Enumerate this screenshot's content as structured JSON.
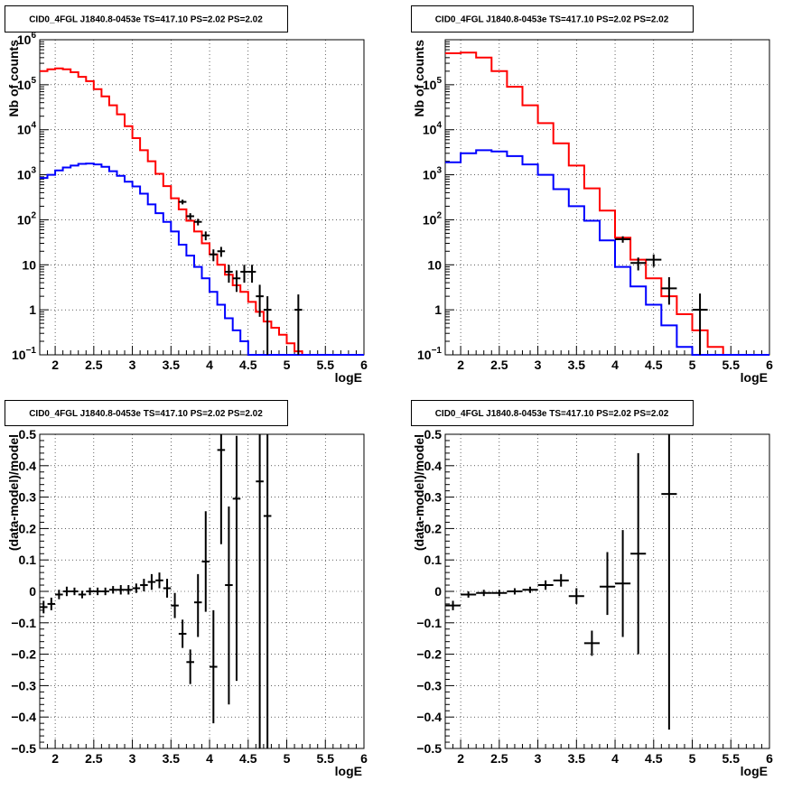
{
  "chart_data": [
    {
      "type": "line",
      "title": "CID0_4FGL J1840.8-0453e TS=417.10 PS=2.02 PS=2.02",
      "xlabel": "logE",
      "ylabel": "Nb of counts",
      "xlim": [
        1.8,
        6.0
      ],
      "ylim": [
        0.1,
        1000000
      ],
      "log_y": true,
      "grid": true,
      "x_ticks": [
        "2",
        "2.5",
        "3",
        "3.5",
        "4",
        "4.5",
        "5",
        "5.5",
        "6"
      ],
      "y_ticks": [
        {
          "v": 0.1,
          "b": "10",
          "e": "−1"
        },
        {
          "v": 1,
          "b": "1",
          "e": ""
        },
        {
          "v": 10,
          "b": "10",
          "e": ""
        },
        {
          "v": 100,
          "b": "10",
          "e": "2"
        },
        {
          "v": 1000,
          "b": "10",
          "e": "3"
        },
        {
          "v": 10000,
          "b": "10",
          "e": "4"
        },
        {
          "v": 100000,
          "b": "10",
          "e": "5"
        },
        {
          "v": 1000000,
          "b": "10",
          "e": "6"
        }
      ],
      "series": [
        {
          "name": "",
          "color": "#ff0000",
          "kind": "step",
          "bin_width": 0.1,
          "x": [
            1.8,
            1.9,
            2.0,
            2.1,
            2.2,
            2.3,
            2.4,
            2.5,
            2.6,
            2.7,
            2.8,
            2.9,
            3.0,
            3.1,
            3.2,
            3.3,
            3.4,
            3.5,
            3.6,
            3.7,
            3.8,
            3.9,
            4.0,
            4.1,
            4.2,
            4.3,
            4.4,
            4.5,
            4.6,
            4.7,
            4.8,
            4.9,
            5.0,
            5.1,
            5.2,
            5.3,
            5.4,
            5.5,
            5.6,
            5.7,
            5.8,
            5.9
          ],
          "values": [
            200000,
            220000,
            230000,
            220000,
            190000,
            150000,
            120000,
            80000,
            55000,
            35000,
            22000,
            12000,
            6500,
            3500,
            2000,
            1050,
            560,
            300,
            170,
            95,
            55,
            30,
            17,
            10,
            6,
            3.5,
            2.5,
            1.5,
            0.9,
            0.55,
            0.4,
            0.28,
            0.18,
            0.12,
            0.1,
            0.1,
            0.1,
            0.1,
            0.1,
            0.1,
            0.1,
            0.1
          ]
        },
        {
          "name": "",
          "color": "#0000ff",
          "kind": "step",
          "bin_width": 0.1,
          "x": [
            1.8,
            1.9,
            2.0,
            2.1,
            2.2,
            2.3,
            2.4,
            2.5,
            2.6,
            2.7,
            2.8,
            2.9,
            3.0,
            3.1,
            3.2,
            3.3,
            3.4,
            3.5,
            3.6,
            3.7,
            3.8,
            3.9,
            4.0,
            4.1,
            4.2,
            4.3,
            4.4,
            4.5,
            4.6,
            4.7,
            4.8,
            4.9,
            5.0,
            5.1,
            5.2,
            5.3,
            5.4,
            5.5,
            5.6,
            5.7,
            5.8,
            5.9
          ],
          "values": [
            850,
            1000,
            1250,
            1450,
            1600,
            1750,
            1780,
            1700,
            1500,
            1200,
            950,
            700,
            550,
            380,
            220,
            140,
            90,
            55,
            28,
            16,
            9,
            5,
            2.5,
            1.3,
            0.65,
            0.35,
            0.2,
            0.1,
            0.1,
            0.1,
            0.1,
            0.1,
            0.1,
            0.1,
            0.1,
            0.1,
            0.1,
            0.1,
            0.1,
            0.1,
            0.1,
            0.1
          ]
        },
        {
          "name": "",
          "color": "#000000",
          "kind": "errorbar",
          "xerr": 0.05,
          "x": [
            3.65,
            3.75,
            3.85,
            3.95,
            4.05,
            4.15,
            4.25,
            4.35,
            4.45,
            4.55,
            4.65,
            4.75,
            5.15
          ],
          "values": [
            250,
            120,
            90,
            45,
            17,
            20,
            7,
            5,
            7,
            7,
            2,
            1,
            1
          ],
          "yerr_lo": [
            30,
            20,
            15,
            10,
            5,
            5,
            3,
            2.5,
            3,
            3,
            1.3,
            0.9,
            0.9
          ],
          "yerr_hi": [
            30,
            20,
            15,
            10,
            5,
            5,
            3,
            2.5,
            3,
            3,
            1.6,
            1,
            1.2
          ]
        }
      ]
    },
    {
      "type": "line",
      "title": "CID0_4FGL J1840.8-0453e TS=417.10 PS=2.02 PS=2.02",
      "xlabel": "logE",
      "ylabel": "Nb of counts",
      "xlim": [
        1.8,
        6.0
      ],
      "ylim": [
        0.1,
        1000000
      ],
      "log_y": true,
      "grid": true,
      "x_ticks": [
        "2",
        "2.5",
        "3",
        "3.5",
        "4",
        "4.5",
        "5",
        "5.5",
        "6"
      ],
      "y_ticks": [
        {
          "v": 0.1,
          "b": "10",
          "e": "−1"
        },
        {
          "v": 1,
          "b": "1",
          "e": ""
        },
        {
          "v": 10,
          "b": "10",
          "e": ""
        },
        {
          "v": 100,
          "b": "10",
          "e": "2"
        },
        {
          "v": 1000,
          "b": "10",
          "e": "3"
        },
        {
          "v": 10000,
          "b": "10",
          "e": "4"
        },
        {
          "v": 100000,
          "b": "10",
          "e": "5"
        }
      ],
      "series": [
        {
          "name": "",
          "color": "#ff0000",
          "kind": "step",
          "bin_width": 0.2,
          "x": [
            1.8,
            2.0,
            2.2,
            2.4,
            2.6,
            2.8,
            3.0,
            3.2,
            3.4,
            3.6,
            3.8,
            4.0,
            4.2,
            4.4,
            4.6,
            4.8,
            5.0,
            5.2,
            5.4,
            5.6,
            5.8
          ],
          "values": [
            500000,
            520000,
            400000,
            200000,
            90000,
            35000,
            14000,
            5000,
            1600,
            500,
            160,
            40,
            13,
            5,
            2,
            0.8,
            0.35,
            0.15,
            0.1,
            0.1,
            0.1
          ]
        },
        {
          "name": "",
          "color": "#0000ff",
          "kind": "step",
          "bin_width": 0.2,
          "x": [
            1.8,
            2.0,
            2.2,
            2.4,
            2.6,
            2.8,
            3.0,
            3.2,
            3.4,
            3.6,
            3.8,
            4.0,
            4.2,
            4.4,
            4.6,
            4.8,
            5.0,
            5.2,
            5.4,
            5.6,
            5.8
          ],
          "values": [
            1900,
            3000,
            3500,
            3300,
            2600,
            1700,
            1000,
            480,
            200,
            95,
            35,
            9,
            3.3,
            1.3,
            0.45,
            0.15,
            0.1,
            0.1,
            0.1,
            0.1,
            0.1
          ]
        },
        {
          "name": "",
          "color": "#000000",
          "kind": "errorbar",
          "xerr": 0.1,
          "x": [
            4.1,
            4.3,
            4.5,
            4.7,
            5.1
          ],
          "values": [
            37,
            11,
            13,
            3,
            1
          ],
          "yerr_lo": [
            6,
            3.5,
            4,
            1.7,
            0.9
          ],
          "yerr_hi": [
            6,
            3.5,
            4,
            2.3,
            1.3
          ]
        }
      ]
    },
    {
      "type": "scatter",
      "title": "CID0_4FGL J1840.8-0453e TS=417.10 PS=2.02 PS=2.02",
      "xlabel": "logE",
      "ylabel": "(data-model)/model",
      "xlim": [
        1.8,
        6.0
      ],
      "ylim": [
        -0.5,
        0.5
      ],
      "log_y": false,
      "grid": true,
      "x_ticks": [
        "2",
        "2.5",
        "3",
        "3.5",
        "4",
        "4.5",
        "5",
        "5.5",
        "6"
      ],
      "y_ticks": [
        {
          "v": -0.5,
          "b": "−0.5",
          "e": ""
        },
        {
          "v": -0.4,
          "b": "−0.4",
          "e": ""
        },
        {
          "v": -0.3,
          "b": "−0.3",
          "e": ""
        },
        {
          "v": -0.2,
          "b": "−0.2",
          "e": ""
        },
        {
          "v": -0.1,
          "b": "−0.1",
          "e": ""
        },
        {
          "v": 0,
          "b": "0",
          "e": ""
        },
        {
          "v": 0.1,
          "b": "0.1",
          "e": ""
        },
        {
          "v": 0.2,
          "b": "0.2",
          "e": ""
        },
        {
          "v": 0.3,
          "b": "0.3",
          "e": ""
        },
        {
          "v": 0.4,
          "b": "0.4",
          "e": ""
        },
        {
          "v": 0.5,
          "b": "0.5",
          "e": ""
        }
      ],
      "series": [
        {
          "name": "",
          "color": "#000000",
          "kind": "errorbar",
          "xerr": 0.05,
          "x": [
            1.85,
            1.95,
            2.05,
            2.15,
            2.25,
            2.35,
            2.45,
            2.55,
            2.65,
            2.75,
            2.85,
            2.95,
            3.05,
            3.15,
            3.25,
            3.35,
            3.45,
            3.55,
            3.65,
            3.75,
            3.85,
            3.95,
            4.05,
            4.15,
            4.25,
            4.35,
            4.65,
            4.75
          ],
          "values": [
            -0.05,
            -0.04,
            -0.01,
            0.0,
            0.0,
            -0.01,
            0.0,
            0.0,
            0.0,
            0.005,
            0.005,
            0.005,
            0.01,
            0.02,
            0.03,
            0.035,
            0.01,
            -0.045,
            -0.135,
            -0.225,
            -0.035,
            0.095,
            -0.24,
            0.45,
            0.02,
            0.295,
            0.35,
            0.24
          ],
          "yerr_lo": [
            0.02,
            0.02,
            0.015,
            0.015,
            0.012,
            0.012,
            0.012,
            0.012,
            0.012,
            0.012,
            0.015,
            0.015,
            0.015,
            0.02,
            0.025,
            0.025,
            0.03,
            0.04,
            0.045,
            0.07,
            0.11,
            0.16,
            0.18,
            0.3,
            0.38,
            0.58,
            0.85,
            0.74
          ],
          "yerr_hi": [
            0.02,
            0.02,
            0.015,
            0.015,
            0.012,
            0.012,
            0.012,
            0.012,
            0.012,
            0.012,
            0.015,
            0.015,
            0.015,
            0.02,
            0.025,
            0.025,
            0.03,
            0.04,
            0.045,
            0.04,
            0.09,
            0.16,
            0.18,
            0.05,
            0.25,
            0.2,
            0.15,
            0.26
          ]
        }
      ]
    },
    {
      "type": "scatter",
      "title": "CID0_4FGL J1840.8-0453e TS=417.10 PS=2.02 PS=2.02",
      "xlabel": "logE",
      "ylabel": "(data-model)/model",
      "xlim": [
        1.8,
        6.0
      ],
      "ylim": [
        -0.5,
        0.5
      ],
      "log_y": false,
      "grid": true,
      "x_ticks": [
        "2",
        "2.5",
        "3",
        "3.5",
        "4",
        "4.5",
        "5",
        "5.5",
        "6"
      ],
      "y_ticks": [
        {
          "v": -0.5,
          "b": "−0.5",
          "e": ""
        },
        {
          "v": -0.4,
          "b": "−0.4",
          "e": ""
        },
        {
          "v": -0.3,
          "b": "−0.3",
          "e": ""
        },
        {
          "v": -0.2,
          "b": "−0.2",
          "e": ""
        },
        {
          "v": -0.1,
          "b": "−0.1",
          "e": ""
        },
        {
          "v": 0,
          "b": "0",
          "e": ""
        },
        {
          "v": 0.1,
          "b": "0.1",
          "e": ""
        },
        {
          "v": 0.2,
          "b": "0.2",
          "e": ""
        },
        {
          "v": 0.3,
          "b": "0.3",
          "e": ""
        },
        {
          "v": 0.4,
          "b": "0.4",
          "e": ""
        },
        {
          "v": 0.5,
          "b": "0.5",
          "e": ""
        }
      ],
      "series": [
        {
          "name": "",
          "color": "#000000",
          "kind": "errorbar",
          "xerr": 0.1,
          "x": [
            1.9,
            2.1,
            2.3,
            2.5,
            2.7,
            2.9,
            3.1,
            3.3,
            3.5,
            3.7,
            3.9,
            4.1,
            4.3,
            4.7
          ],
          "values": [
            -0.045,
            -0.01,
            -0.005,
            -0.005,
            0.0,
            0.005,
            0.02,
            0.035,
            -0.015,
            -0.165,
            0.015,
            0.025,
            0.12,
            0.31
          ],
          "yerr_lo": [
            0.015,
            0.01,
            0.01,
            0.01,
            0.01,
            0.01,
            0.015,
            0.02,
            0.025,
            0.04,
            0.09,
            0.17,
            0.32,
            0.75
          ],
          "yerr_hi": [
            0.015,
            0.01,
            0.01,
            0.01,
            0.01,
            0.01,
            0.015,
            0.02,
            0.025,
            0.04,
            0.11,
            0.17,
            0.32,
            0.19
          ]
        }
      ]
    }
  ]
}
